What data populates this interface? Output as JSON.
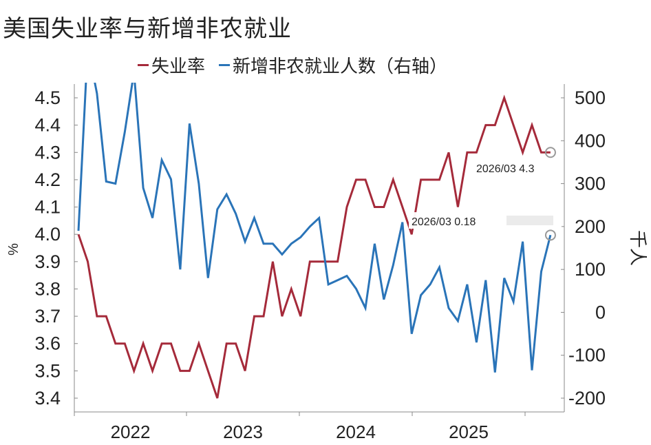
{
  "chart_data": {
    "type": "line",
    "title": "美国失业率与新增非农就业",
    "x_ticks": [
      "2022",
      "2023",
      "2024",
      "2025"
    ],
    "left_axis": {
      "label": "%",
      "range": [
        3.4,
        4.5
      ],
      "ticks": [
        "4.5",
        "4.4",
        "4.3",
        "4.2",
        "4.1",
        "4.0",
        "3.9",
        "3.8",
        "3.7",
        "3.6",
        "3.5",
        "3.4"
      ]
    },
    "right_axis": {
      "label": "千人",
      "range": [
        -200,
        500
      ],
      "ticks": [
        "500",
        "400",
        "300",
        "200",
        "100",
        "0",
        "-100",
        "-200"
      ]
    },
    "legend_position": "top",
    "series": [
      {
        "name": "失业率",
        "axis": "left",
        "color": "#a52a3a",
        "x": [
          "2021-12",
          "2022-01",
          "2022-02",
          "2022-03",
          "2022-04",
          "2022-05",
          "2022-06",
          "2022-07",
          "2022-08",
          "2022-09",
          "2022-10",
          "2022-11",
          "2022-12",
          "2023-01",
          "2023-02",
          "2023-03",
          "2023-04",
          "2023-05",
          "2023-06",
          "2023-07",
          "2023-08",
          "2023-09",
          "2023-10",
          "2023-11",
          "2023-12",
          "2024-01",
          "2024-02",
          "2024-03",
          "2024-04",
          "2024-05",
          "2024-06",
          "2024-07",
          "2024-08",
          "2024-09",
          "2024-10",
          "2024-11",
          "2024-12",
          "2025-01",
          "2025-02",
          "2025-03",
          "2025-04",
          "2025-05",
          "2025-06",
          "2025-07",
          "2025-08",
          "2025-09",
          "2025-10",
          "2025-11",
          "2025-12",
          "2026-01",
          "2026-02",
          "2026-03"
        ],
        "values": [
          4.0,
          3.9,
          3.7,
          3.7,
          3.6,
          3.6,
          3.5,
          3.6,
          3.5,
          3.6,
          3.6,
          3.5,
          3.5,
          3.6,
          3.5,
          3.4,
          3.6,
          3.6,
          3.5,
          3.7,
          3.7,
          3.9,
          3.7,
          3.8,
          3.7,
          3.9,
          3.9,
          3.9,
          3.9,
          4.1,
          4.2,
          4.2,
          4.1,
          4.1,
          4.2,
          4.1,
          4.0,
          4.2,
          4.2,
          4.2,
          4.3,
          4.1,
          4.3,
          4.3,
          4.4,
          4.4,
          4.5,
          4.4,
          4.3,
          4.4,
          4.3,
          4.3
        ]
      },
      {
        "name": "新增非农就业人数（右轴）",
        "axis": "right",
        "color": "#2a74b8",
        "x": [
          "2021-12",
          "2022-01",
          "2022-02",
          "2022-03",
          "2022-04",
          "2022-05",
          "2022-06",
          "2022-07",
          "2022-08",
          "2022-09",
          "2022-10",
          "2022-11",
          "2022-12",
          "2023-01",
          "2023-02",
          "2023-03",
          "2023-04",
          "2023-05",
          "2023-06",
          "2023-07",
          "2023-08",
          "2023-09",
          "2023-10",
          "2023-11",
          "2023-12",
          "2024-01",
          "2024-02",
          "2024-03",
          "2024-04",
          "2024-05",
          "2024-06",
          "2024-07",
          "2024-08",
          "2024-09",
          "2024-10",
          "2024-11",
          "2024-12",
          "2025-01",
          "2025-02",
          "2025-03",
          "2025-04",
          "2025-05",
          "2025-06",
          "2025-07",
          "2025-08",
          "2025-09",
          "2025-10",
          "2025-11",
          "2025-12",
          "2026-01",
          "2026-02",
          "2026-03"
        ],
        "values": [
          190,
          620,
          510,
          305,
          300,
          420,
          560,
          290,
          220,
          355,
          310,
          100,
          440,
          300,
          80,
          240,
          275,
          230,
          165,
          220,
          160,
          160,
          135,
          160,
          175,
          200,
          220,
          65,
          75,
          85,
          55,
          10,
          160,
          30,
          110,
          210,
          -50,
          40,
          65,
          105,
          10,
          -20,
          65,
          -70,
          75,
          -140,
          80,
          25,
          165,
          -135,
          95,
          180
        ]
      }
    ],
    "annotations": [
      {
        "series": "失业率",
        "x": "2026-03",
        "label": "2026/03  4.3"
      },
      {
        "series": "新增非农就业人数（右轴）",
        "x": "2026-03",
        "label": "2026/03  0.18"
      }
    ]
  }
}
